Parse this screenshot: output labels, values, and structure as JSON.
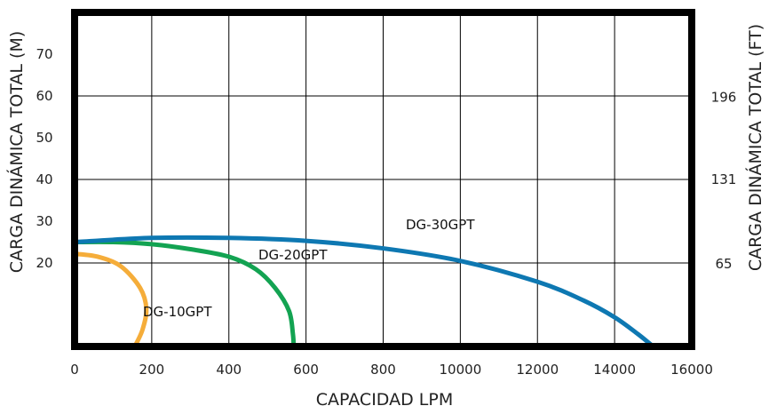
{
  "chart_data": {
    "type": "line",
    "title": "",
    "xlabel": "CAPACIDAD LPM",
    "ylabel_left": "CARGA DINÁMICA TOTAL (M)",
    "ylabel_right": "CARGA DINÁMICA TOTAL (FT)",
    "x_tick_labels": [
      "0",
      "200",
      "400",
      "600",
      "800",
      "10000",
      "12000",
      "14000",
      "16000"
    ],
    "y_left_tick_labels": [
      {
        "label": "20",
        "value": 20
      },
      {
        "label": "30",
        "value": 30
      },
      {
        "label": "40",
        "value": 40
      },
      {
        "label": "50",
        "value": 50
      },
      {
        "label": "60",
        "value": 60
      },
      {
        "label": "70",
        "value": 70
      }
    ],
    "y_right_tick_labels": [
      {
        "label": "65",
        "value": 19.8
      },
      {
        "label": "131",
        "value": 40
      },
      {
        "label": "196",
        "value": 59.7
      }
    ],
    "xlim": [
      0,
      8
    ],
    "ylim": [
      0,
      80
    ],
    "grid": true,
    "series": [
      {
        "name": "DG-10GPT",
        "color": "#f5ad3a",
        "points": [
          [
            0,
            22.2
          ],
          [
            0.3,
            21.5
          ],
          [
            0.6,
            19.2
          ],
          [
            0.85,
            14
          ],
          [
            0.93,
            9
          ],
          [
            0.88,
            4
          ],
          [
            0.78,
            0
          ]
        ]
      },
      {
        "name": "DG-20GPT",
        "color": "#13a352",
        "points": [
          [
            0,
            25
          ],
          [
            0.5,
            25
          ],
          [
            1.0,
            24.5
          ],
          [
            1.5,
            23.3
          ],
          [
            2.0,
            21.5
          ],
          [
            2.35,
            18.5
          ],
          [
            2.6,
            14
          ],
          [
            2.78,
            8.5
          ],
          [
            2.83,
            3
          ],
          [
            2.84,
            0
          ]
        ]
      },
      {
        "name": "DG-30GPT",
        "color": "#0e78b2",
        "points": [
          [
            0,
            25
          ],
          [
            1.0,
            26
          ],
          [
            2.0,
            26
          ],
          [
            3.0,
            25.3
          ],
          [
            4.0,
            23.5
          ],
          [
            5.0,
            20.5
          ],
          [
            6.0,
            15.5
          ],
          [
            6.6,
            11
          ],
          [
            7.0,
            7
          ],
          [
            7.3,
            3
          ],
          [
            7.5,
            0
          ]
        ]
      }
    ]
  }
}
